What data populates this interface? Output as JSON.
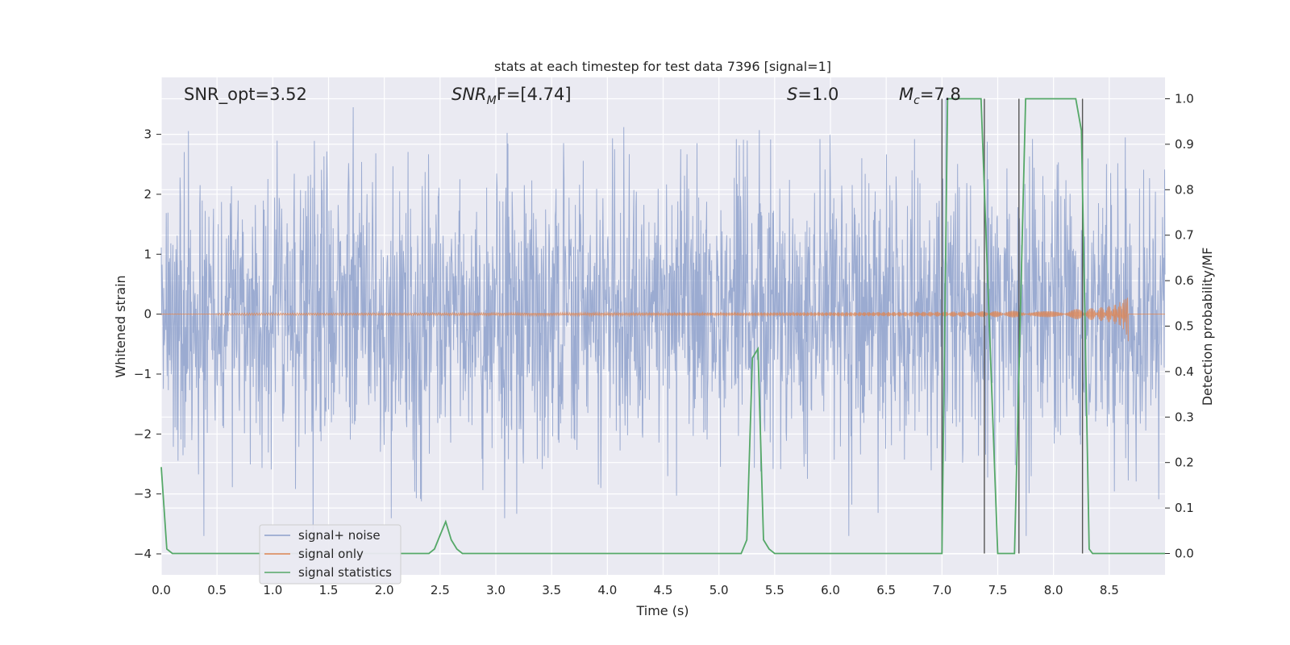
{
  "chart_data": {
    "type": "line",
    "title": "stats at each timestep for test data 7396 [signal=1]",
    "xlabel": "Time (s)",
    "ylabel_left": "Whitened strain",
    "ylabel_right": "Detection probability/MF",
    "xlim": [
      0.0,
      9.0
    ],
    "ylim_left": [
      -4.35,
      3.95
    ],
    "ylim_right": [
      -0.047,
      1.047
    ],
    "xticks": [
      "0.0",
      "0.5",
      "1.0",
      "1.5",
      "2.0",
      "2.5",
      "3.0",
      "3.5",
      "4.0",
      "4.5",
      "5.0",
      "5.5",
      "6.0",
      "6.5",
      "7.0",
      "7.5",
      "8.0",
      "8.5"
    ],
    "yticks_left": [
      "−4",
      "−3",
      "−2",
      "−1",
      "0",
      "1",
      "2",
      "3"
    ],
    "yticks_right": [
      "0.0",
      "0.1",
      "0.2",
      "0.3",
      "0.4",
      "0.5",
      "0.6",
      "0.7",
      "0.8",
      "0.9",
      "1.0"
    ],
    "grid": true,
    "legend_position": "lower-left",
    "annotations": {
      "snr_opt": "SNR_opt=3.52",
      "snr_mf_base": "SNR",
      "snr_mf_sub": "M",
      "snr_mf_rest": "F=[4.74]",
      "s_italic": "S",
      "s_rest": "=1.0",
      "mc_italic": "M",
      "mc_sub": "c",
      "mc_rest": "=7.8"
    },
    "series": [
      {
        "name": "signal+ noise",
        "color": "#8da0cb",
        "description_range": [
          -3.7,
          3.6
        ]
      },
      {
        "name": "signal only",
        "color": "#dd8452",
        "chirp_end_time": 8.67,
        "chirp_peak_amplitude": 0.48
      },
      {
        "name": "signal statistics",
        "color": "#55a868",
        "x": [
          0.0,
          0.05,
          0.1,
          0.15,
          0.2,
          2.4,
          2.45,
          2.5,
          2.55,
          2.6,
          2.65,
          2.7,
          5.2,
          5.25,
          5.3,
          5.35,
          5.4,
          5.45,
          5.5,
          6.0,
          6.1,
          7.0,
          7.05,
          7.1,
          7.35,
          7.5,
          7.65,
          7.75,
          7.8,
          7.95,
          8.2,
          8.25,
          8.32,
          8.35,
          9.0
        ],
        "y": [
          0.19,
          0.01,
          0.0,
          0.0,
          0.0,
          0.0,
          0.01,
          0.04,
          0.07,
          0.03,
          0.01,
          0.0,
          0.0,
          0.03,
          0.43,
          0.45,
          0.03,
          0.01,
          0.0,
          0.0,
          0.0,
          0.0,
          1.0,
          1.0,
          1.0,
          0.0,
          0.0,
          1.0,
          1.0,
          1.0,
          1.0,
          0.93,
          0.01,
          0.0,
          0.0
        ]
      }
    ],
    "vertical_markers": [
      7.0,
      7.38,
      7.69,
      8.26
    ]
  }
}
